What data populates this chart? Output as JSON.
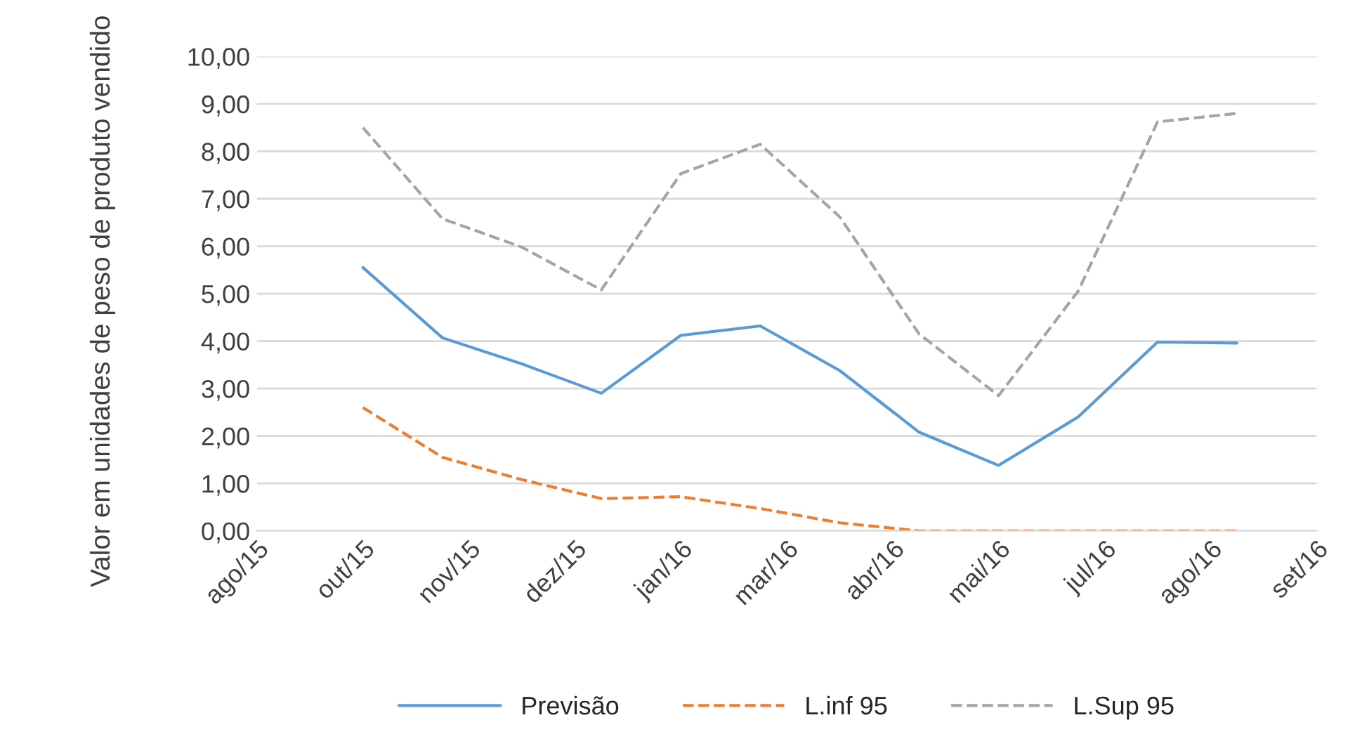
{
  "chart_data": {
    "type": "line",
    "ylabel": "Valor em unidades de peso de produto vendido",
    "x": [
      "2015-10-01",
      "2015-10-31",
      "2015-11-30",
      "2015-12-30",
      "2016-01-29",
      "2016-02-28",
      "2016-03-29",
      "2016-04-28",
      "2016-05-28",
      "2016-06-27",
      "2016-07-27",
      "2016-08-26"
    ],
    "series": [
      {
        "name": "Previsão",
        "color": "#5b9bd5",
        "line_style": "solid",
        "values": [
          5.55,
          4.07,
          3.52,
          2.9,
          4.12,
          4.32,
          3.38,
          2.08,
          1.38,
          2.4,
          3.98,
          3.96
        ]
      },
      {
        "name": "L.inf 95",
        "color": "#ed7d31",
        "line_style": "dashed",
        "values": [
          2.6,
          1.55,
          1.08,
          0.68,
          0.72,
          0.47,
          0.17,
          0,
          0,
          0,
          0,
          0
        ]
      },
      {
        "name": "L.Sup 95",
        "color": "#a5a5a5",
        "line_style": "dashed",
        "values": [
          8.5,
          6.58,
          5.98,
          5.08,
          7.53,
          8.15,
          6.62,
          4.15,
          2.85,
          5.05,
          8.62,
          8.8
        ]
      }
    ],
    "xlim": [
      "2015-08-22",
      "2016-09-25"
    ],
    "xticks": [
      {
        "value": "2015-08-22",
        "label": "ago/15"
      },
      {
        "value": "2015-10-01",
        "label": "out/15"
      },
      {
        "value": "2015-11-10",
        "label": "nov/15"
      },
      {
        "value": "2015-12-20",
        "label": "dez/15"
      },
      {
        "value": "2016-01-29",
        "label": "jan/16"
      },
      {
        "value": "2016-03-09",
        "label": "mar/16"
      },
      {
        "value": "2016-04-18",
        "label": "abr/16"
      },
      {
        "value": "2016-05-28",
        "label": "mai/16"
      },
      {
        "value": "2016-07-07",
        "label": "jul/16"
      },
      {
        "value": "2016-08-16",
        "label": "ago/16"
      },
      {
        "value": "2016-09-25",
        "label": "set/16"
      }
    ],
    "ylim": [
      0,
      10
    ],
    "yticks": [
      {
        "value": 0,
        "label": "0,00"
      },
      {
        "value": 1,
        "label": "1,00"
      },
      {
        "value": 2,
        "label": "2,00"
      },
      {
        "value": 3,
        "label": "3,00"
      },
      {
        "value": 4,
        "label": "4,00"
      },
      {
        "value": 5,
        "label": "5,00"
      },
      {
        "value": 6,
        "label": "6,00"
      },
      {
        "value": 7,
        "label": "7,00"
      },
      {
        "value": 8,
        "label": "8,00"
      },
      {
        "value": 9,
        "label": "9,00"
      },
      {
        "value": 10,
        "label": "10,00"
      }
    ],
    "grid": "y",
    "legend": "bottom"
  }
}
